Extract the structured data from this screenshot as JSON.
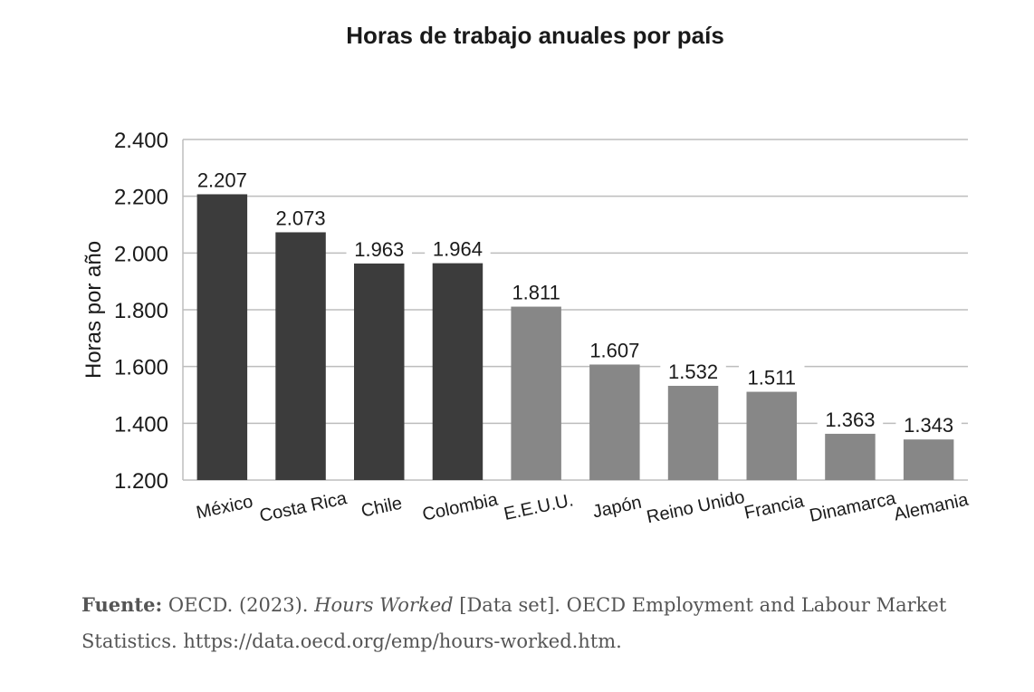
{
  "chart_data": {
    "type": "bar",
    "title": "Horas de trabajo anuales por país",
    "ylabel": "Horas por año",
    "xlabel": "",
    "categories": [
      "México",
      "Costa Rica",
      "Chile",
      "Colombia",
      "E.E.U.U.",
      "Japón",
      "Reino Unido",
      "Francia",
      "Dinamarca",
      "Alemania"
    ],
    "values": [
      2207,
      2073,
      1963,
      1964,
      1811,
      1607,
      1532,
      1511,
      1363,
      1343
    ],
    "value_labels": [
      "2.207",
      "2.073",
      "1.963",
      "1.964",
      "1.811",
      "1.607",
      "1.532",
      "1.511",
      "1.363",
      "1.343"
    ],
    "ylim": [
      1200,
      2400
    ],
    "yticks": [
      1200,
      1400,
      1600,
      1800,
      2000,
      2200,
      2400
    ],
    "ytick_labels": [
      "1.200",
      "1.400",
      "1.600",
      "1.800",
      "2.000",
      "2.200",
      "2.400"
    ],
    "grid": true,
    "colors": {
      "dark": "#3c3c3c",
      "light": "#878787",
      "grid": "#bdbdbd"
    },
    "bar_colors": [
      "dark",
      "dark",
      "dark",
      "dark",
      "light",
      "light",
      "light",
      "light",
      "light",
      "light"
    ]
  },
  "source": {
    "label": "Fuente:",
    "text_before": " OECD. (2023). ",
    "italic": "Hours Worked",
    "text_after": " [Data set]. OECD Employment and Labour Market Statistics. https://data.oecd.org/emp/hours-worked.htm."
  }
}
